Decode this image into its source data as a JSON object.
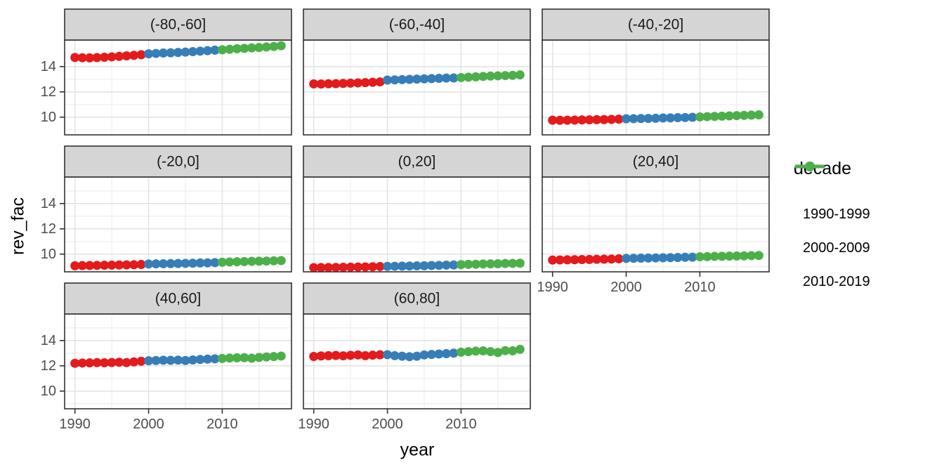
{
  "chart_data": {
    "type": "scatter",
    "title": "",
    "xlabel": "year",
    "ylabel": "rev_fac",
    "legend_title": "decade",
    "legend_position": "right",
    "grid": true,
    "x_range": [
      1988.6,
      2019.4
    ],
    "y_range": [
      8.6,
      16.1
    ],
    "x_ticks": [
      1990,
      2000,
      2010
    ],
    "y_ticks": [
      14,
      12,
      10
    ],
    "x_minor_gridlines": [
      1995,
      2005,
      2015
    ],
    "y_minor_gridlines": [
      9,
      11,
      13,
      15
    ],
    "years": [
      1990,
      1991,
      1992,
      1993,
      1994,
      1995,
      1996,
      1997,
      1998,
      1999,
      2000,
      2001,
      2002,
      2003,
      2004,
      2005,
      2006,
      2007,
      2008,
      2009,
      2010,
      2011,
      2012,
      2013,
      2014,
      2015,
      2016,
      2017,
      2018
    ],
    "legend": [
      {
        "label": "1990-1999",
        "color": "#E41A1C"
      },
      {
        "label": "2000-2009",
        "color": "#377EB8"
      },
      {
        "label": "2010-2019",
        "color": "#4DAF4A"
      }
    ],
    "facets": [
      {
        "label": "(-80,-60]",
        "values": [
          14.72,
          14.7,
          14.69,
          14.71,
          14.74,
          14.77,
          14.81,
          14.85,
          14.89,
          14.94,
          15.01,
          15.04,
          15.07,
          15.09,
          15.12,
          15.15,
          15.18,
          15.22,
          15.26,
          15.3,
          15.33,
          15.37,
          15.41,
          15.44,
          15.48,
          15.51,
          15.55,
          15.59,
          15.65
        ]
      },
      {
        "label": "(-60,-40]",
        "values": [
          12.63,
          12.62,
          12.64,
          12.65,
          12.67,
          12.69,
          12.71,
          12.73,
          12.76,
          12.79,
          12.93,
          12.95,
          12.97,
          12.99,
          13.01,
          13.03,
          13.05,
          13.07,
          13.09,
          13.1,
          13.13,
          13.16,
          13.19,
          13.22,
          13.25,
          13.27,
          13.29,
          13.31,
          13.34
        ]
      },
      {
        "label": "(-40,-20]",
        "values": [
          9.76,
          9.75,
          9.76,
          9.77,
          9.78,
          9.79,
          9.8,
          9.81,
          9.82,
          9.84,
          9.87,
          9.88,
          9.89,
          9.9,
          9.91,
          9.93,
          9.94,
          9.96,
          9.97,
          9.99,
          10.02,
          10.04,
          10.06,
          10.08,
          10.1,
          10.12,
          10.14,
          10.16,
          10.18
        ]
      },
      {
        "label": "(-20,0]",
        "values": [
          9.08,
          9.09,
          9.1,
          9.11,
          9.12,
          9.13,
          9.14,
          9.15,
          9.16,
          9.18,
          9.22,
          9.23,
          9.24,
          9.25,
          9.26,
          9.27,
          9.28,
          9.3,
          9.31,
          9.33,
          9.36,
          9.38,
          9.4,
          9.41,
          9.43,
          9.44,
          9.45,
          9.47,
          9.49
        ]
      },
      {
        "label": "(0,20]",
        "values": [
          8.93,
          8.94,
          8.94,
          8.95,
          8.96,
          8.97,
          8.98,
          8.99,
          9.0,
          9.02,
          9.03,
          9.04,
          9.05,
          9.06,
          9.07,
          9.08,
          9.1,
          9.11,
          9.13,
          9.14,
          9.17,
          9.19,
          9.2,
          9.22,
          9.23,
          9.24,
          9.26,
          9.27,
          9.28
        ]
      },
      {
        "label": "(20,40]",
        "values": [
          9.53,
          9.54,
          9.55,
          9.56,
          9.57,
          9.58,
          9.59,
          9.6,
          9.61,
          9.63,
          9.66,
          9.67,
          9.68,
          9.69,
          9.7,
          9.71,
          9.72,
          9.73,
          9.75,
          9.76,
          9.79,
          9.8,
          9.82,
          9.83,
          9.84,
          9.85,
          9.86,
          9.88,
          9.89
        ]
      },
      {
        "label": "(40,60]",
        "values": [
          12.2,
          12.22,
          12.23,
          12.25,
          12.24,
          12.26,
          12.28,
          12.25,
          12.31,
          12.36,
          12.4,
          12.42,
          12.44,
          12.43,
          12.45,
          12.42,
          12.46,
          12.5,
          12.53,
          12.55,
          12.58,
          12.61,
          12.63,
          12.64,
          12.6,
          12.66,
          12.7,
          12.73,
          12.77
        ]
      },
      {
        "label": "(60,80]",
        "values": [
          12.74,
          12.78,
          12.8,
          12.82,
          12.79,
          12.83,
          12.86,
          12.8,
          12.84,
          12.87,
          12.88,
          12.8,
          12.76,
          12.72,
          12.76,
          12.86,
          12.9,
          12.93,
          12.96,
          13.0,
          13.08,
          13.12,
          13.16,
          13.18,
          13.12,
          13.05,
          13.2,
          13.18,
          13.3
        ]
      }
    ],
    "style": {
      "strip_fill": "#d5d5d5",
      "strip_text": "#1a1a1a",
      "panel_border": "#333333",
      "grid_major": "#e4e4e4",
      "grid_minor": "#f2f2f2",
      "axis_text": "#4d4d4d",
      "tick_color": "#333333",
      "point_radius": 6.5
    }
  }
}
